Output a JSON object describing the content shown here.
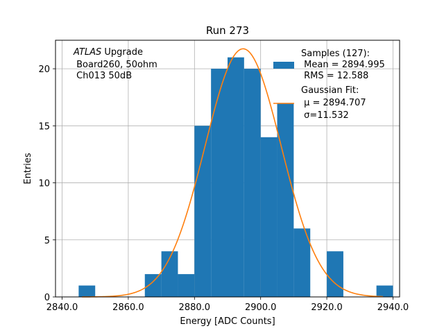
{
  "chart_data": {
    "type": "bar",
    "title": "Run 273",
    "xlabel": "Energy [ADC Counts]",
    "ylabel": "Entries",
    "xlim": [
      2838,
      2942
    ],
    "ylim": [
      0,
      22.5
    ],
    "xticks": [
      2840,
      2860,
      2880,
      2900,
      2920,
      2940
    ],
    "xtick_labels": [
      "2840.0",
      "2860.0",
      "2880.0",
      "2900.0",
      "2920.0",
      "2940.0"
    ],
    "yticks": [
      0,
      5,
      10,
      15,
      20
    ],
    "ytick_labels": [
      "0",
      "5",
      "10",
      "15",
      "20"
    ],
    "grid": true,
    "bin_width": 5,
    "histogram": {
      "bin_starts": [
        2845,
        2850,
        2855,
        2860,
        2865,
        2870,
        2875,
        2880,
        2885,
        2890,
        2895,
        2900,
        2905,
        2910,
        2915,
        2920,
        2925,
        2930,
        2935
      ],
      "counts": [
        1,
        0,
        0,
        0,
        2,
        4,
        2,
        15,
        20,
        21,
        20,
        14,
        17,
        6,
        0,
        4,
        0,
        0,
        1
      ],
      "color": "#1f77b4"
    },
    "fit": {
      "mu": 2894.707,
      "sigma": 11.532,
      "amplitude": 21.75,
      "x_range": [
        2846,
        2937
      ],
      "color": "#ff7f0e"
    },
    "legend": {
      "placement": "top-right",
      "entries": [
        {
          "lines": [
            "Samples (127):",
            " Mean = 2894.995",
            " RMS = 12.588"
          ],
          "kind": "patch",
          "color": "#1f77b4"
        },
        {
          "lines": [
            "Gaussian Fit:",
            " μ = 2894.707",
            " σ=11.532"
          ],
          "kind": "line",
          "color": "#ff7f0e"
        }
      ]
    },
    "annotation": {
      "italic": "ATLAS",
      "rest": " Upgrade",
      "line2": " Board260, 50ohm",
      "line3": " Ch013 50dB"
    }
  }
}
